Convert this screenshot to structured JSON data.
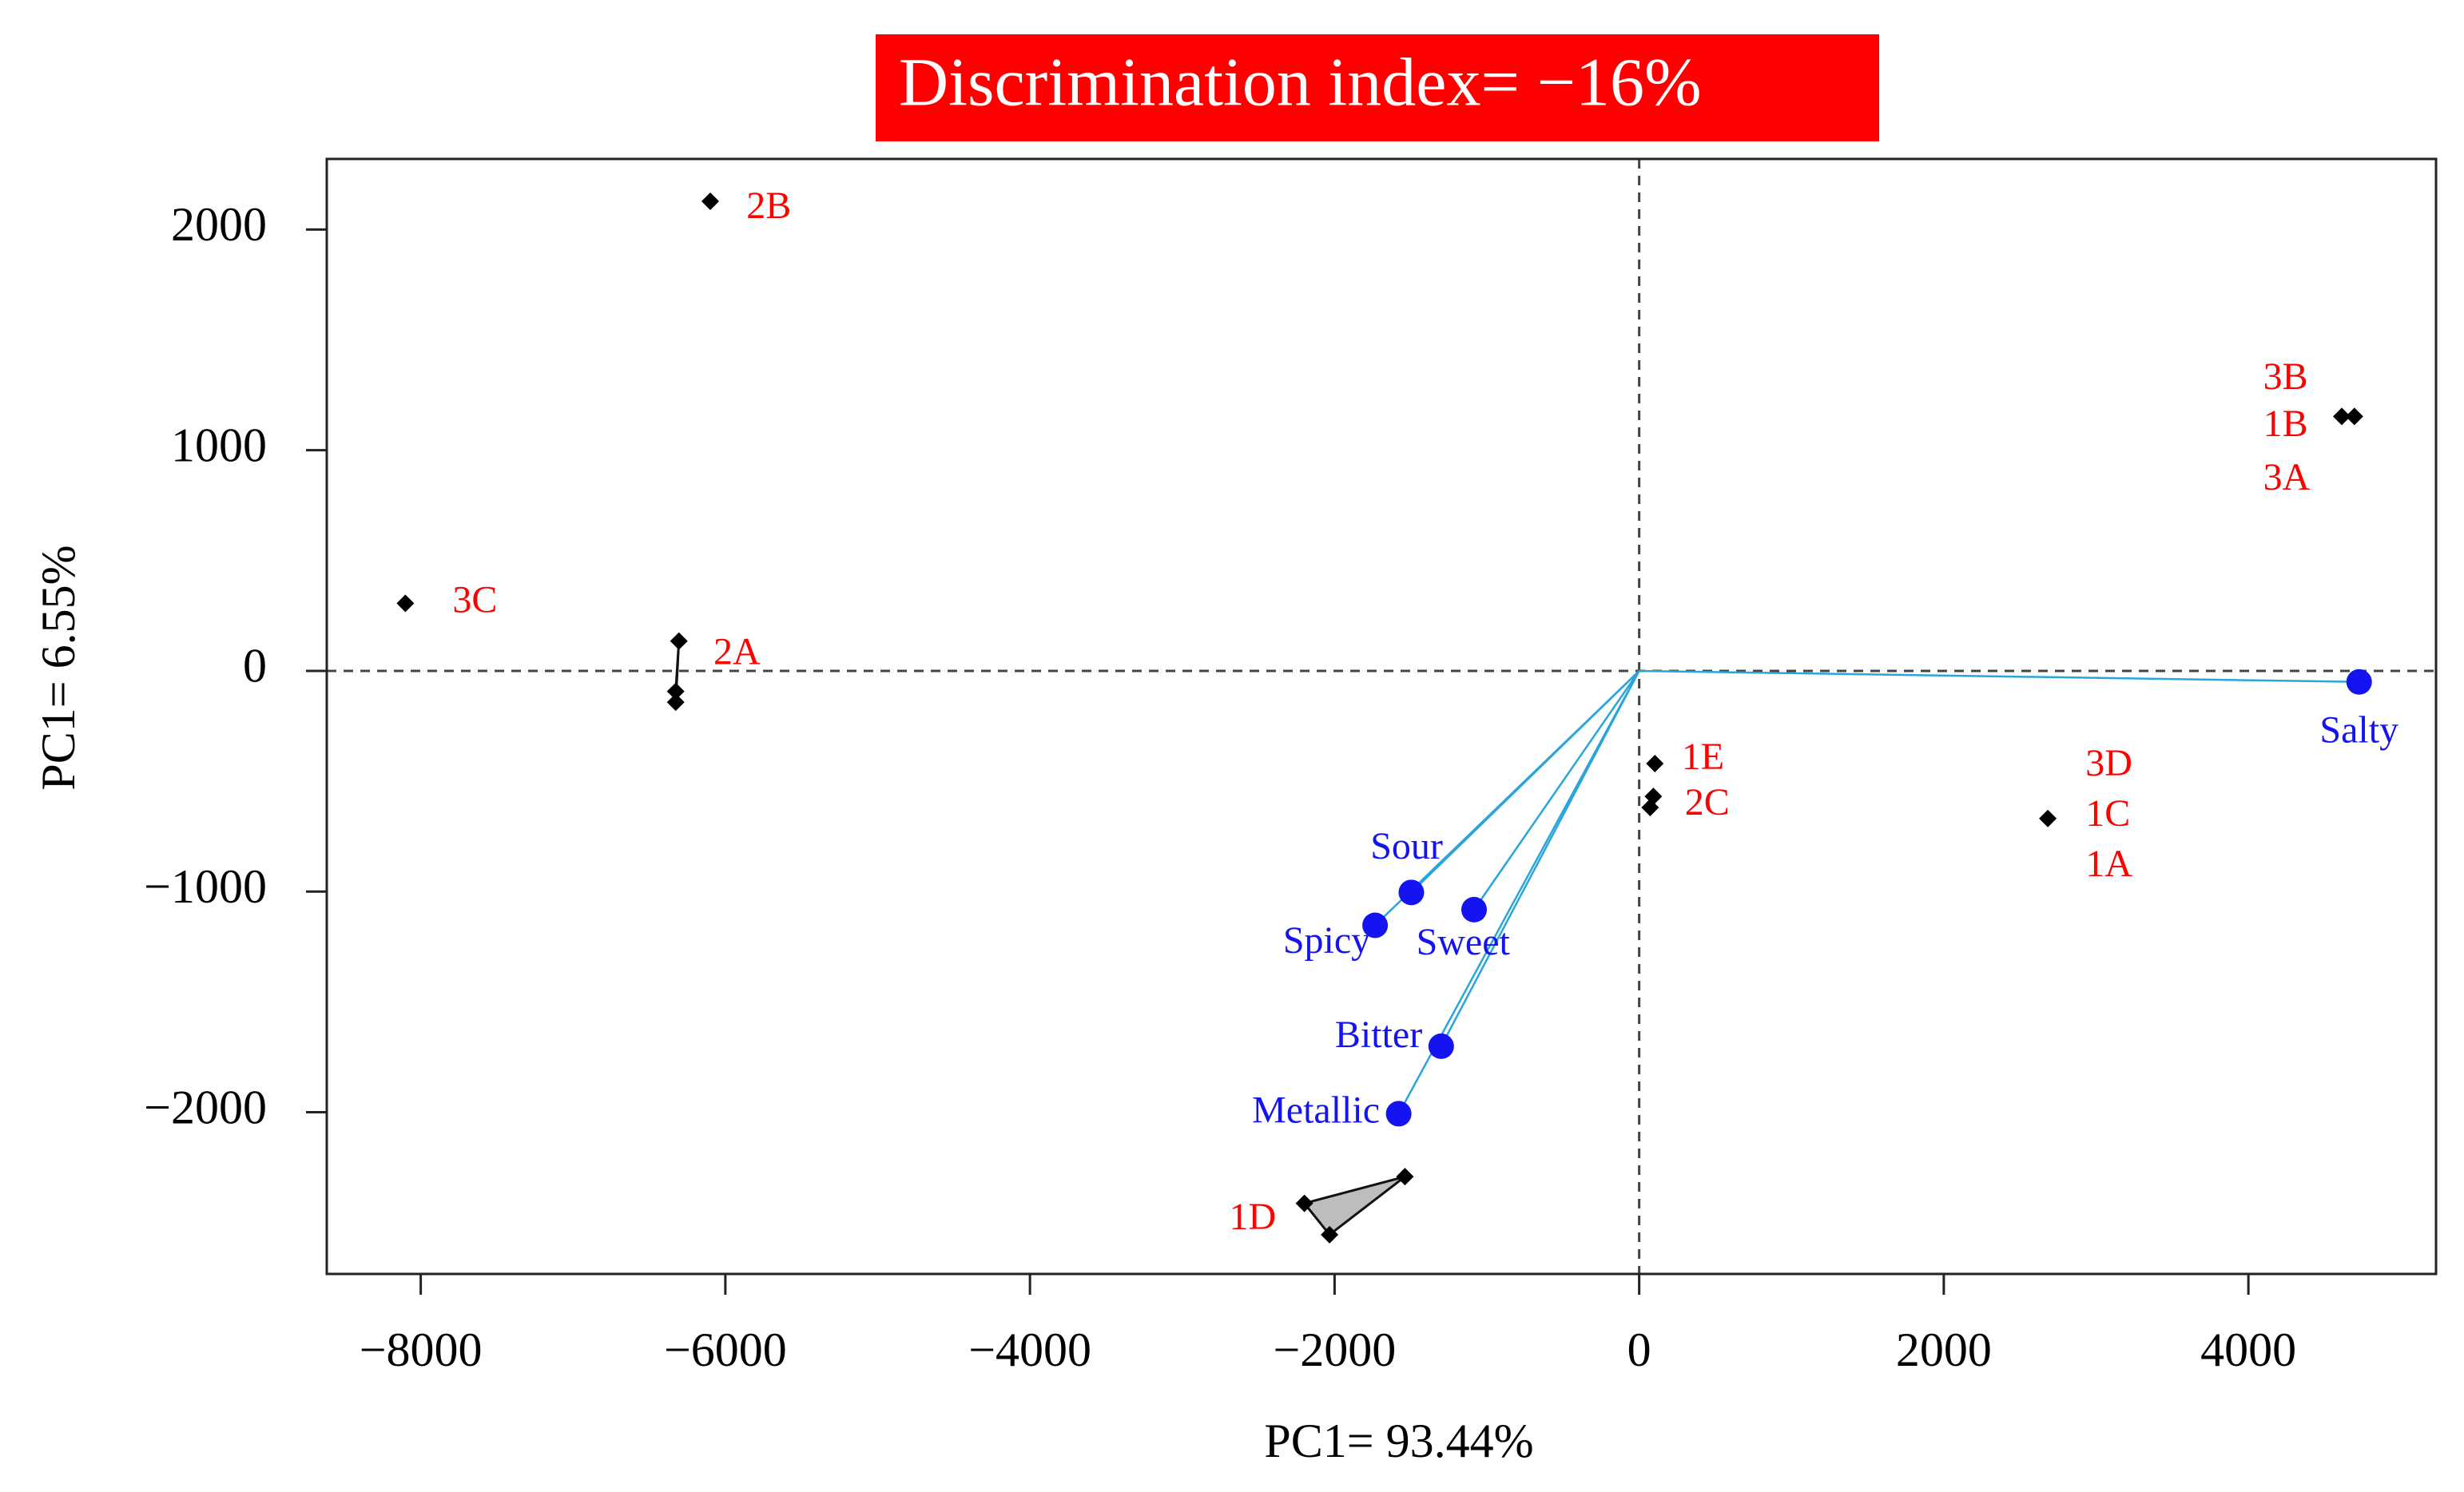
{
  "chart_data": {
    "type": "scatter",
    "title": "Discrimination index= −16%",
    "title_background": "#ff0000",
    "xlabel": "PC1= 93.44%",
    "ylabel": "PC1= 6.55%",
    "xlim": [
      -8617,
      5232
    ],
    "ylim": [
      -2733,
      2320
    ],
    "xticks": [
      {
        "value": -8000,
        "label": "−8000"
      },
      {
        "value": -6000,
        "label": "−6000"
      },
      {
        "value": -4000,
        "label": "−4000"
      },
      {
        "value": -2000,
        "label": "−2000"
      },
      0,
      2000,
      4000
    ],
    "yticks": [
      {
        "value": -2000,
        "label": "−2000"
      },
      {
        "value": -1000,
        "label": "−1000"
      },
      0,
      1000,
      2000
    ],
    "sample_color": "#ff0000",
    "groups": [
      {
        "labels": [
          "2B"
        ],
        "x": [
          -6099
        ],
        "y": [
          2128
        ]
      },
      {
        "labels": [
          "3C"
        ],
        "x": [
          -8101
        ],
        "y": [
          306
        ]
      },
      {
        "labels": [
          "2A"
        ],
        "x": [
          -6305,
          -6326,
          -6326
        ],
        "y": [
          135,
          -93,
          -142
        ],
        "hull": true
      },
      {
        "labels": [
          "1E"
        ],
        "x": [
          103
        ],
        "y": [
          -420
        ]
      },
      {
        "labels": [
          "2C"
        ],
        "x": [
          93,
          72
        ],
        "y": [
          -569,
          -619
        ]
      },
      {
        "labels": [
          "3D",
          "1C",
          "1A"
        ],
        "x": [
          2683
        ],
        "y": [
          -669
        ]
      },
      {
        "labels": [
          "3B",
          "1B",
          "3A"
        ],
        "x": [
          4613,
          4696
        ],
        "y": [
          1153,
          1153
        ]
      },
      {
        "labels": [
          "1D"
        ],
        "x": [
          -2198,
          -1538,
          -2033
        ],
        "y": [
          -2413,
          -2292,
          -2555
        ],
        "hull": true
      }
    ],
    "loadings": {
      "labels": [
        "Salty",
        "Sour",
        "Spicy",
        "Sweet",
        "Bitter",
        "Metallic"
      ],
      "x": [
        4727,
        -1496,
        -1734,
        -1084,
        -1300,
        -1579
      ],
      "y": [
        -50,
        -1004,
        -1153,
        -1082,
        -1701,
        -2007
      ],
      "color": "#1414f0",
      "line_color": "#2aa5d9"
    }
  }
}
